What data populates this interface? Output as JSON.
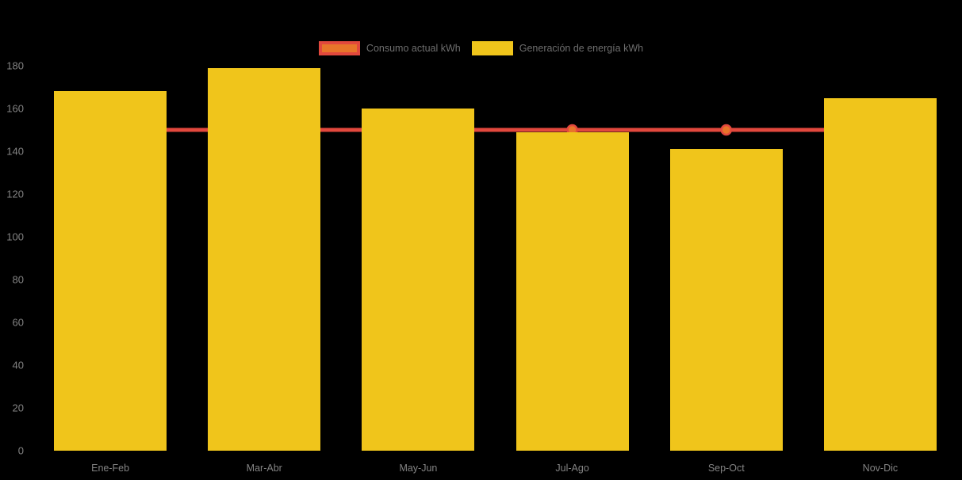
{
  "chart_data": {
    "type": "bar",
    "title": "",
    "categories": [
      "Ene-Feb",
      "Mar-Abr",
      "May-Jun",
      "Jul-Ago",
      "Sep-Oct",
      "Nov-Dic"
    ],
    "series": [
      {
        "name": "Consumo actual kWh",
        "type": "line",
        "values": [
          150,
          150,
          150,
          150,
          150,
          150
        ],
        "line_color": "#e2483d",
        "point_fill": "#e8752a"
      },
      {
        "name": "Generación de energía kWh",
        "type": "bar",
        "values": [
          168,
          179,
          160,
          149,
          141,
          165
        ],
        "bar_color": "#f0c51b"
      }
    ],
    "ylim": [
      0,
      180
    ],
    "yticks": [
      0,
      20,
      40,
      60,
      80,
      100,
      120,
      140,
      160,
      180
    ],
    "grid": false,
    "legend_position": "top",
    "background": "#000000",
    "axis_text_color": "#838383",
    "legend_text_color": "#6e6e6e"
  }
}
